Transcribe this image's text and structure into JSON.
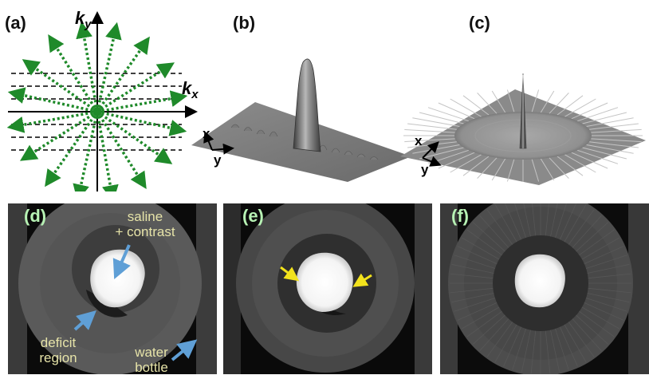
{
  "panels": {
    "a": "(a)",
    "b": "(b)",
    "c": "(c)",
    "d": "(d)",
    "e": "(e)",
    "f": "(f)"
  },
  "kspace": {
    "ky_base": "k",
    "ky_sub": "y",
    "kx_base": "k",
    "kx_sub": "x"
  },
  "psf_axes": {
    "b_x": "x",
    "b_y": "y",
    "c_x": "x",
    "c_y": "y"
  },
  "annotations": {
    "saline_line1": "saline",
    "saline_line2": "+ contrast",
    "deficit_line1": "deficit",
    "deficit_line2": "region",
    "water_line1": "water",
    "water_line2": "bottle"
  },
  "colors": {
    "trajectory": "#1f8a2a",
    "annotation_arrow": "#5f9fd6",
    "artifact_arrow": "#f2e21c",
    "mri_label": "#b7f2b4",
    "annotation_text": "#e6e3a8"
  }
}
